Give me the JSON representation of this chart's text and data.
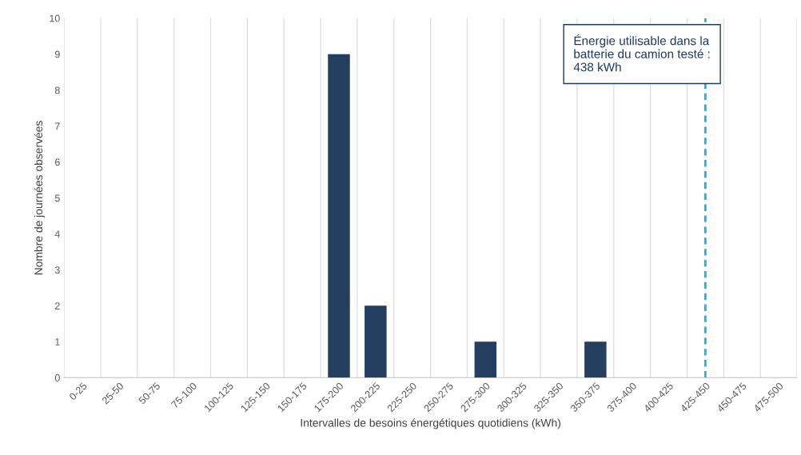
{
  "chart_data": {
    "type": "bar",
    "xlabel": "Intervalles de besoins énergétiques quotidiens (kWh)",
    "ylabel": "Nombre de journées observées",
    "categories": [
      "0-25",
      "25-50",
      "50-75",
      "75-100",
      "100-125",
      "125-150",
      "150-175",
      "175-200",
      "200-225",
      "225-250",
      "250-275",
      "275-300",
      "300-325",
      "325-350",
      "350-375",
      "375-400",
      "400-425",
      "425-450",
      "450-475",
      "475-500"
    ],
    "values": [
      0,
      0,
      0,
      0,
      0,
      0,
      0,
      9,
      2,
      0,
      0,
      1,
      0,
      0,
      1,
      0,
      0,
      0,
      0,
      0
    ],
    "color": "#243f60",
    "ylim": [
      0,
      10
    ],
    "yticks": [
      0,
      1,
      2,
      3,
      4,
      5,
      6,
      7,
      8,
      9,
      10
    ],
    "grid": "x",
    "ref_lines": [
      {
        "axis": "x",
        "value": "425-450",
        "color": "#1fb0e6",
        "line_style": "dashed"
      }
    ],
    "annotations": [
      "Énergie utilisable dans la\nbatterie du camion testé :\n438 kWh"
    ]
  }
}
